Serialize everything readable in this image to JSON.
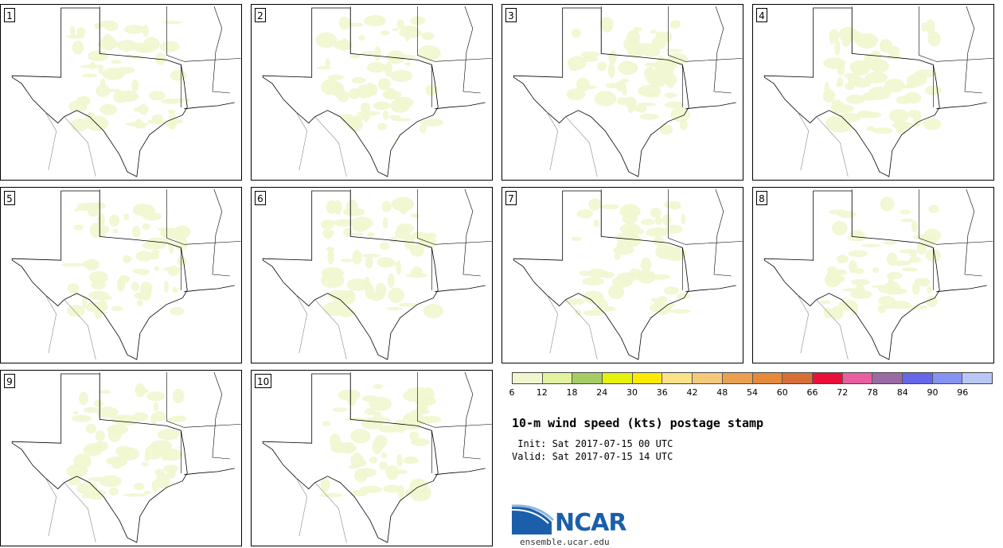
{
  "panels": [
    {
      "label": "1"
    },
    {
      "label": "2"
    },
    {
      "label": "3"
    },
    {
      "label": "4"
    },
    {
      "label": "5"
    },
    {
      "label": "6"
    },
    {
      "label": "7"
    },
    {
      "label": "8"
    },
    {
      "label": "9"
    },
    {
      "label": "10"
    }
  ],
  "colorbar": {
    "colors": [
      "#f1f6cf",
      "#e2f2a0",
      "#a6cc65",
      "#e6f10e",
      "#fcea00",
      "#fbe187",
      "#f5c97a",
      "#eaa050",
      "#e58a3b",
      "#d77037",
      "#ea0f3a",
      "#e95ea0",
      "#9a6aa4",
      "#6667e9",
      "#8593f3",
      "#b9c6f6"
    ],
    "ticks": [
      "6",
      "12",
      "18",
      "24",
      "30",
      "36",
      "42",
      "48",
      "54",
      "60",
      "66",
      "72",
      "78",
      "84",
      "90",
      "96"
    ]
  },
  "title": "10-m wind speed (kts) postage stamp",
  "init": " Init: Sat 2017-07-15 00 UTC",
  "valid": "Valid: Sat 2017-07-15 14 UTC",
  "logo": {
    "text": "NCAR",
    "url": "ensemble.ucar.edu"
  }
}
